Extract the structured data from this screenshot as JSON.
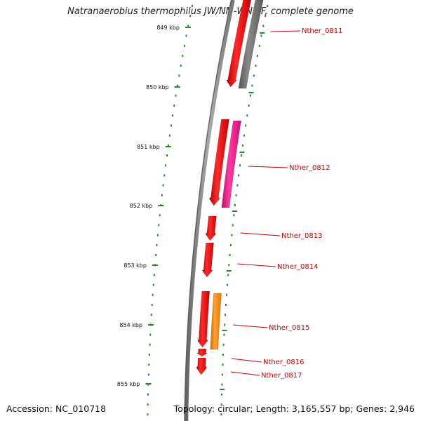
{
  "title": "Natranaerobius thermophilus JW/NM-WN-LF, complete genome",
  "accession": "Accession: NC_010718",
  "topology": "Topology: circular; Length: 3,165,557 bp; Genes: 2,946",
  "ticks": [
    "849 kbp",
    "850 kbp",
    "851 kbp",
    "852 kbp",
    "853 kbp",
    "854 kbp",
    "855 kbp"
  ],
  "genes": [
    {
      "label": "Nther_0811",
      "color": "#ff0000"
    },
    {
      "label": "Nther_0812",
      "color": "#ff0000"
    },
    {
      "label": "Nther_0813",
      "color": "#ff0000"
    },
    {
      "label": "Nther_0814",
      "color": "#ff0000"
    },
    {
      "label": "Nther_0815",
      "color": "#ff0000"
    },
    {
      "label": "Nther_0816",
      "color": "#ff0000"
    },
    {
      "label": "Nther_0817",
      "color": "#ff0000"
    }
  ],
  "companion_features": [
    {
      "color": "#777777"
    },
    {
      "color": "#ff1493"
    },
    {
      "color": "#ff8c00"
    }
  ],
  "colors": {
    "backbone": "#888888",
    "tick": "#228b22",
    "label": "#cc0000"
  }
}
